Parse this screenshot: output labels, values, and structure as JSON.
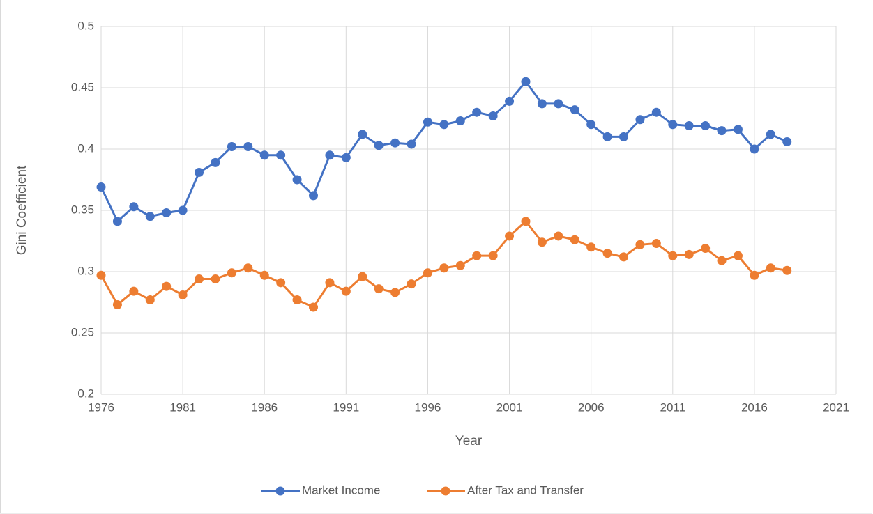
{
  "chart_data": {
    "type": "line",
    "x_label": "Year",
    "y_label": "Gini Coefficient",
    "x": [
      1976,
      1977,
      1978,
      1979,
      1980,
      1981,
      1982,
      1983,
      1984,
      1985,
      1986,
      1987,
      1988,
      1989,
      1990,
      1991,
      1992,
      1993,
      1994,
      1995,
      1996,
      1997,
      1998,
      1999,
      2000,
      2001,
      2002,
      2003,
      2004,
      2005,
      2006,
      2007,
      2008,
      2009,
      2010,
      2011,
      2012,
      2013,
      2014,
      2015,
      2016,
      2017,
      2018
    ],
    "series": [
      {
        "name": "Market Income",
        "color": "#4472c4",
        "values": [
          0.369,
          0.341,
          0.353,
          0.345,
          0.348,
          0.35,
          0.381,
          0.389,
          0.402,
          0.402,
          0.395,
          0.395,
          0.375,
          0.362,
          0.395,
          0.393,
          0.412,
          0.403,
          0.405,
          0.404,
          0.422,
          0.42,
          0.423,
          0.43,
          0.427,
          0.439,
          0.455,
          0.437,
          0.437,
          0.432,
          0.42,
          0.41,
          0.41,
          0.424,
          0.43,
          0.42,
          0.419,
          0.419,
          0.415,
          0.416,
          0.4,
          0.412,
          0.406
        ]
      },
      {
        "name": "After Tax and Transfer",
        "color": "#ed7d31",
        "values": [
          0.297,
          0.273,
          0.284,
          0.277,
          0.288,
          0.281,
          0.294,
          0.294,
          0.299,
          0.303,
          0.297,
          0.291,
          0.277,
          0.271,
          0.291,
          0.284,
          0.296,
          0.286,
          0.283,
          0.29,
          0.299,
          0.303,
          0.305,
          0.313,
          0.313,
          0.329,
          0.341,
          0.324,
          0.329,
          0.326,
          0.32,
          0.315,
          0.312,
          0.322,
          0.323,
          0.313,
          0.314,
          0.319,
          0.309,
          0.313,
          0.297,
          0.303,
          0.301
        ]
      }
    ],
    "xlim": [
      1976,
      2021
    ],
    "xticks": [
      1976,
      1981,
      1986,
      1991,
      1996,
      2001,
      2006,
      2011,
      2016,
      2021
    ],
    "ylim": [
      0.2,
      0.5
    ],
    "yticks": [
      0.2,
      0.25,
      0.3,
      0.35,
      0.4,
      0.45,
      0.5
    ],
    "grid": true,
    "legend": "bottom"
  }
}
